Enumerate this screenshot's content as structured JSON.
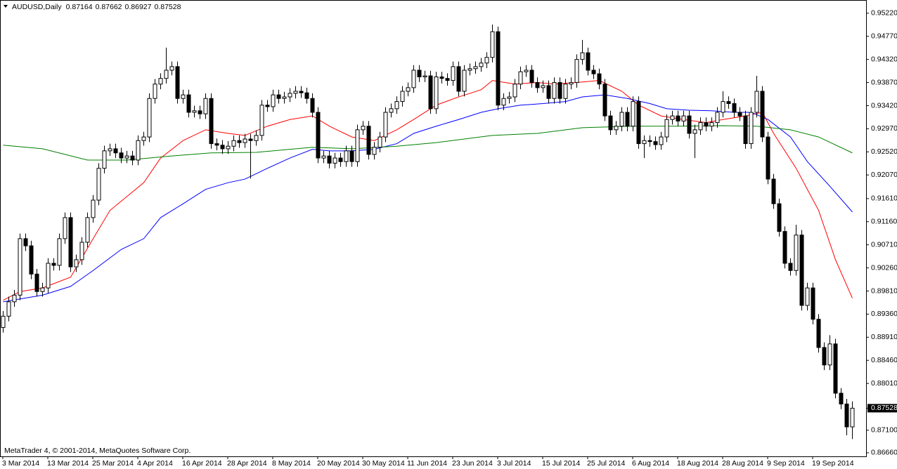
{
  "chart_data": {
    "type": "candlestick",
    "symbol": "AUDUSD,Daily",
    "footer": "MetaTrader 4, © 2001-2014, MetaQuotes Software Corp.",
    "up_color": "#ffffff",
    "down_color": "#000000",
    "outline_color": "#000000",
    "categories": [
      "3 Mar 2014",
      null,
      null,
      null,
      null,
      null,
      null,
      null,
      "13 Mar 2014",
      null,
      null,
      null,
      null,
      null,
      null,
      null,
      "25 Mar 2014",
      null,
      null,
      null,
      null,
      null,
      null,
      null,
      "4 Apr 2014",
      null,
      null,
      null,
      null,
      null,
      null,
      null,
      "16 Apr 2014",
      null,
      null,
      null,
      null,
      null,
      null,
      null,
      "28 Apr 2014",
      null,
      null,
      null,
      null,
      null,
      null,
      null,
      "8 May 2014",
      null,
      null,
      null,
      null,
      null,
      null,
      null,
      "20 May 2014",
      null,
      null,
      null,
      null,
      null,
      null,
      null,
      "30 May 2014",
      null,
      null,
      null,
      null,
      null,
      null,
      null,
      "11 Jun 2014",
      null,
      null,
      null,
      null,
      null,
      null,
      null,
      "23 Jun 2014",
      null,
      null,
      null,
      null,
      null,
      null,
      null,
      "3 Jul 2014",
      null,
      null,
      null,
      null,
      null,
      null,
      null,
      "15 Jul 2014",
      null,
      null,
      null,
      null,
      null,
      null,
      null,
      "25 Jul 2014",
      null,
      null,
      null,
      null,
      null,
      null,
      null,
      "6 Aug 2014",
      null,
      null,
      null,
      null,
      null,
      null,
      null,
      "18 Aug 2014",
      null,
      null,
      null,
      null,
      null,
      null,
      null,
      "28 Aug 2014",
      null,
      null,
      null,
      null,
      null,
      null,
      null,
      "9 Sep 2014",
      null,
      null,
      null,
      null,
      null,
      null,
      null,
      "19 Sep 2014",
      null,
      null,
      null,
      null,
      null,
      null,
      null
    ],
    "open": [
      0.891,
      0.8932,
      0.896,
      0.8973,
      0.9083,
      0.9069,
      0.9014,
      0.898,
      0.8987,
      0.9035,
      0.9031,
      0.9083,
      0.9124,
      0.9028,
      0.9042,
      0.9076,
      0.9124,
      0.9158,
      0.922,
      0.9254,
      0.9258,
      0.925,
      0.924,
      0.9244,
      0.9236,
      0.9274,
      0.9281,
      0.9356,
      0.9384,
      0.9395,
      0.9411,
      0.9418,
      0.9356,
      0.9363,
      0.9329,
      0.9332,
      0.9326,
      0.9356,
      0.9268,
      0.9265,
      0.9258,
      0.9263,
      0.9274,
      0.927,
      0.9277,
      0.9274,
      0.9284,
      0.9343,
      0.934,
      0.9363,
      0.9356,
      0.9359,
      0.9366,
      0.937,
      0.9367,
      0.9356,
      0.9329,
      0.924,
      0.9244,
      0.923,
      0.924,
      0.9233,
      0.9254,
      0.9233,
      0.9295,
      0.9302,
      0.9247,
      0.9261,
      0.9281,
      0.9329,
      0.9336,
      0.935,
      0.937,
      0.9377,
      0.9411,
      0.9398,
      0.94,
      0.9336,
      0.9398,
      0.9395,
      0.9391,
      0.9418,
      0.937,
      0.9411,
      0.9414,
      0.9418,
      0.9425,
      0.9436,
      0.9486,
      0.9343,
      0.9356,
      0.9359,
      0.9384,
      0.9408,
      0.9411,
      0.9387,
      0.9377,
      0.9381,
      0.9356,
      0.9387,
      0.9356,
      0.9384,
      0.9387,
      0.9432,
      0.9445,
      0.9411,
      0.9404,
      0.9384,
      0.9322,
      0.9295,
      0.9302,
      0.9329,
      0.9302,
      0.935,
      0.9268,
      0.9274,
      0.9272,
      0.9266,
      0.9281,
      0.9315,
      0.9322,
      0.9312,
      0.9322,
      0.9288,
      0.9295,
      0.9309,
      0.9302,
      0.9309,
      0.9329,
      0.935,
      0.9346,
      0.9329,
      0.9322,
      0.9268,
      0.9329,
      0.937,
      0.9281,
      0.9199,
      0.9151,
      0.9097,
      0.9035,
      0.9021,
      0.909,
      0.8953,
      0.8987,
      0.8926,
      0.8871,
      0.8837,
      0.8878,
      0.8782,
      0.8761,
      0.87164
    ],
    "high": [
      0.8942,
      0.897,
      0.8983,
      0.9093,
      0.9093,
      0.9079,
      0.9024,
      0.8997,
      0.9045,
      0.9045,
      0.9093,
      0.9134,
      0.9134,
      0.9052,
      0.9086,
      0.9134,
      0.9168,
      0.923,
      0.9264,
      0.9268,
      0.9268,
      0.926,
      0.9254,
      0.9254,
      0.9284,
      0.9291,
      0.9366,
      0.9394,
      0.9405,
      0.9455,
      0.9428,
      0.9428,
      0.9373,
      0.9373,
      0.9342,
      0.9342,
      0.9366,
      0.9366,
      0.9278,
      0.9275,
      0.9273,
      0.9284,
      0.9284,
      0.9287,
      0.9287,
      0.9294,
      0.9353,
      0.9353,
      0.9373,
      0.9373,
      0.9369,
      0.9376,
      0.938,
      0.938,
      0.9377,
      0.9366,
      0.9339,
      0.9254,
      0.9254,
      0.925,
      0.925,
      0.9264,
      0.9264,
      0.9305,
      0.9312,
      0.9312,
      0.9271,
      0.9291,
      0.9339,
      0.9346,
      0.936,
      0.938,
      0.9387,
      0.9421,
      0.9421,
      0.941,
      0.941,
      0.9408,
      0.9408,
      0.9405,
      0.9428,
      0.9428,
      0.9421,
      0.9424,
      0.9428,
      0.9435,
      0.9446,
      0.95,
      0.9496,
      0.9366,
      0.9369,
      0.9394,
      0.9418,
      0.9421,
      0.9421,
      0.9397,
      0.9391,
      0.9391,
      0.9397,
      0.9397,
      0.9394,
      0.9397,
      0.9442,
      0.947,
      0.9455,
      0.9421,
      0.9414,
      0.9394,
      0.9332,
      0.9312,
      0.9339,
      0.9339,
      0.936,
      0.936,
      0.9284,
      0.9284,
      0.9282,
      0.9291,
      0.9325,
      0.9332,
      0.9332,
      0.9332,
      0.9332,
      0.9305,
      0.9319,
      0.9319,
      0.9319,
      0.9339,
      0.937,
      0.936,
      0.9356,
      0.9339,
      0.9332,
      0.9339,
      0.94,
      0.938,
      0.9291,
      0.9209,
      0.9161,
      0.9107,
      0.9045,
      0.911,
      0.91,
      0.8997,
      0.8997,
      0.8936,
      0.8881,
      0.8895,
      0.8888,
      0.8792,
      0.8771,
      0.87662
    ],
    "low": [
      0.89,
      0.8922,
      0.895,
      0.8963,
      0.9059,
      0.9004,
      0.897,
      0.897,
      0.8977,
      0.9021,
      0.9021,
      0.9073,
      0.9018,
      0.9018,
      0.9032,
      0.9066,
      0.9114,
      0.9148,
      0.921,
      0.9244,
      0.924,
      0.923,
      0.923,
      0.9226,
      0.9226,
      0.9264,
      0.9271,
      0.9346,
      0.9374,
      0.9385,
      0.9401,
      0.9346,
      0.9346,
      0.9319,
      0.9319,
      0.9316,
      0.9316,
      0.9258,
      0.9255,
      0.9248,
      0.9248,
      0.9253,
      0.926,
      0.926,
      0.92,
      0.9264,
      0.9274,
      0.933,
      0.933,
      0.9346,
      0.9346,
      0.9349,
      0.9356,
      0.9357,
      0.9346,
      0.9319,
      0.923,
      0.923,
      0.922,
      0.922,
      0.9223,
      0.9223,
      0.9223,
      0.9223,
      0.9285,
      0.9237,
      0.9237,
      0.9251,
      0.9271,
      0.9319,
      0.9326,
      0.934,
      0.936,
      0.9367,
      0.9388,
      0.9388,
      0.9326,
      0.9326,
      0.9385,
      0.9381,
      0.9381,
      0.936,
      0.936,
      0.9401,
      0.9404,
      0.9408,
      0.9415,
      0.9426,
      0.9333,
      0.9333,
      0.9346,
      0.9349,
      0.9374,
      0.9398,
      0.9377,
      0.9367,
      0.9367,
      0.9346,
      0.9346,
      0.9346,
      0.9346,
      0.9374,
      0.9377,
      0.9422,
      0.9401,
      0.9394,
      0.9374,
      0.9312,
      0.9285,
      0.9285,
      0.9292,
      0.9292,
      0.9292,
      0.9258,
      0.924,
      0.9262,
      0.9256,
      0.9256,
      0.9271,
      0.9305,
      0.9302,
      0.9302,
      0.9278,
      0.924,
      0.9285,
      0.9292,
      0.9292,
      0.9299,
      0.9319,
      0.9336,
      0.9319,
      0.9312,
      0.9258,
      0.9258,
      0.9319,
      0.9271,
      0.9189,
      0.9141,
      0.9087,
      0.9025,
      0.9011,
      0.9011,
      0.8943,
      0.8943,
      0.8916,
      0.8861,
      0.8827,
      0.8827,
      0.8772,
      0.8751,
      0.87,
      0.86927
    ],
    "close": [
      0.8932,
      0.896,
      0.8973,
      0.9083,
      0.9069,
      0.9014,
      0.898,
      0.8987,
      0.9035,
      0.9031,
      0.9083,
      0.9124,
      0.9028,
      0.9042,
      0.9076,
      0.9124,
      0.9158,
      0.922,
      0.9254,
      0.9258,
      0.925,
      0.924,
      0.9244,
      0.9236,
      0.9274,
      0.9281,
      0.9356,
      0.9384,
      0.9395,
      0.9411,
      0.9418,
      0.9356,
      0.9363,
      0.9329,
      0.9332,
      0.9326,
      0.9356,
      0.9268,
      0.9265,
      0.9258,
      0.9263,
      0.9274,
      0.927,
      0.9277,
      0.9274,
      0.9284,
      0.9343,
      0.934,
      0.9363,
      0.9356,
      0.9359,
      0.9366,
      0.937,
      0.9367,
      0.9356,
      0.9329,
      0.924,
      0.9244,
      0.923,
      0.924,
      0.9233,
      0.9254,
      0.9233,
      0.9295,
      0.9302,
      0.9247,
      0.9261,
      0.9281,
      0.9329,
      0.9336,
      0.935,
      0.937,
      0.9377,
      0.9411,
      0.9398,
      0.94,
      0.9336,
      0.9398,
      0.9395,
      0.9391,
      0.9418,
      0.937,
      0.9411,
      0.9414,
      0.9418,
      0.9425,
      0.9436,
      0.9486,
      0.9343,
      0.9356,
      0.9359,
      0.9384,
      0.9408,
      0.9411,
      0.9387,
      0.9377,
      0.9381,
      0.9356,
      0.9387,
      0.9356,
      0.9384,
      0.9387,
      0.9432,
      0.9445,
      0.9411,
      0.9404,
      0.9384,
      0.9322,
      0.9295,
      0.9302,
      0.9329,
      0.9302,
      0.935,
      0.9268,
      0.9274,
      0.9272,
      0.9266,
      0.9281,
      0.9315,
      0.9322,
      0.9312,
      0.9322,
      0.9288,
      0.9295,
      0.9309,
      0.9302,
      0.9309,
      0.9329,
      0.935,
      0.9346,
      0.9329,
      0.9322,
      0.9268,
      0.9329,
      0.937,
      0.9281,
      0.9199,
      0.9151,
      0.9097,
      0.9035,
      0.9021,
      0.909,
      0.8953,
      0.8987,
      0.8926,
      0.8871,
      0.8837,
      0.8878,
      0.8782,
      0.8761,
      0.87164,
      0.87528
    ],
    "overlays": [
      {
        "color": "#ff0000",
        "x": [
          0,
          3,
          7,
          12,
          16,
          19,
          25,
          28,
          32,
          36,
          40,
          43,
          47,
          51,
          55,
          58,
          62,
          66,
          70,
          73,
          77,
          81,
          85,
          87,
          91,
          95,
          98,
          102,
          106,
          110,
          113,
          117,
          121,
          125,
          128,
          132,
          135,
          137,
          141,
          145,
          148,
          151
        ],
        "values": [
          0.8963,
          0.898,
          0.8987,
          0.9008,
          0.9083,
          0.9138,
          0.9192,
          0.924,
          0.9274,
          0.9295,
          0.9288,
          0.9284,
          0.9302,
          0.9315,
          0.9322,
          0.9302,
          0.9281,
          0.9274,
          0.9295,
          0.9315,
          0.9343,
          0.9359,
          0.9373,
          0.9391,
          0.9384,
          0.9387,
          0.9384,
          0.9387,
          0.9391,
          0.937,
          0.9343,
          0.9322,
          0.9315,
          0.9309,
          0.9315,
          0.9322,
          0.9329,
          0.9288,
          0.922,
          0.9138,
          0.9042,
          0.8967
        ]
      },
      {
        "color": "#0000ff",
        "x": [
          0,
          7,
          12,
          16,
          21,
          25,
          28,
          32,
          36,
          40,
          43,
          47,
          51,
          55,
          58,
          62,
          66,
          70,
          73,
          77,
          81,
          85,
          88,
          92,
          96,
          100,
          103,
          107,
          111,
          115,
          118,
          122,
          126,
          130,
          133,
          136,
          140,
          143,
          147,
          151
        ],
        "values": [
          0.896,
          0.8973,
          0.899,
          0.9021,
          0.9062,
          0.9083,
          0.9124,
          0.9151,
          0.9179,
          0.9192,
          0.9199,
          0.922,
          0.924,
          0.9257,
          0.9254,
          0.9254,
          0.9257,
          0.9268,
          0.9288,
          0.9302,
          0.9315,
          0.9329,
          0.9336,
          0.9343,
          0.9346,
          0.935,
          0.9359,
          0.9363,
          0.9356,
          0.9346,
          0.9336,
          0.9333,
          0.9332,
          0.9329,
          0.9329,
          0.9315,
          0.9281,
          0.9233,
          0.9185,
          0.9135
        ]
      },
      {
        "color": "#008000",
        "x": [
          0,
          7,
          15,
          22,
          30,
          37,
          45,
          55,
          62,
          70,
          77,
          87,
          95,
          103,
          112,
          120,
          128,
          134,
          140,
          145,
          151
        ],
        "values": [
          0.9265,
          0.9258,
          0.9236,
          0.9236,
          0.9244,
          0.925,
          0.9251,
          0.9261,
          0.9258,
          0.9263,
          0.927,
          0.9284,
          0.9288,
          0.9299,
          0.9302,
          0.9302,
          0.9303,
          0.9302,
          0.9295,
          0.9281,
          0.925
        ]
      }
    ],
    "ylim": [
      0.8659,
      0.9545
    ],
    "yticks": [
      {
        "value": 0.9522,
        "label": "0.95220"
      },
      {
        "value": 0.9477,
        "label": "0.94770"
      },
      {
        "value": 0.9432,
        "label": "0.94320"
      },
      {
        "value": 0.9387,
        "label": "0.93870"
      },
      {
        "value": 0.9342,
        "label": "0.93420"
      },
      {
        "value": 0.9297,
        "label": "0.92970"
      },
      {
        "value": 0.9252,
        "label": "0.92520"
      },
      {
        "value": 0.9207,
        "label": "0.92070"
      },
      {
        "value": 0.9161,
        "label": "0.91610"
      },
      {
        "value": 0.9116,
        "label": "0.91160"
      },
      {
        "value": 0.9071,
        "label": "0.90710"
      },
      {
        "value": 0.9026,
        "label": "0.90260"
      },
      {
        "value": 0.8981,
        "label": "0.89810"
      },
      {
        "value": 0.8936,
        "label": "0.89360"
      },
      {
        "value": 0.8891,
        "label": "0.88910"
      },
      {
        "value": 0.8846,
        "label": "0.88460"
      },
      {
        "value": 0.8801,
        "label": "0.88010"
      },
      {
        "value": 0.871,
        "label": "0.87100"
      },
      {
        "value": 0.8666,
        "label": "0.86660"
      }
    ],
    "grid": false
  }
}
